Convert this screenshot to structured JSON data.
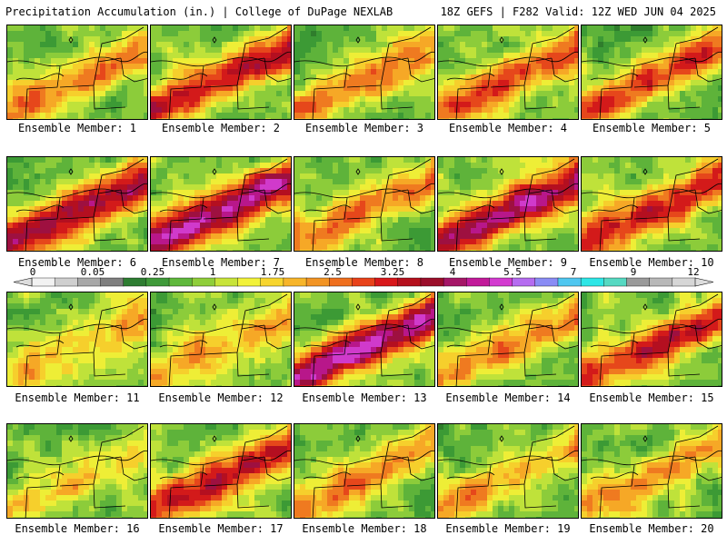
{
  "header": {
    "left": "Precipitation Accumulation (in.) | College of DuPage NEXLAB",
    "right": "18Z GEFS | F282 Valid: 12Z WED JUN 04 2025"
  },
  "colorbar": {
    "ticks": [
      "0",
      "0.05",
      "0.25",
      "1",
      "1.75",
      "2.5",
      "3.25",
      "4",
      "5.5",
      "7",
      "9",
      "12"
    ],
    "colors": [
      "#f2f2f2",
      "#cfcfcf",
      "#a8a8a8",
      "#7f7f7f",
      "#2e7d32",
      "#3f9a3a",
      "#5fb83c",
      "#8fce3a",
      "#c8e43a",
      "#f2f23a",
      "#f7d52e",
      "#f7b52a",
      "#f29424",
      "#ef6f1e",
      "#e8421a",
      "#d8171a",
      "#b5101d",
      "#9b0e2a",
      "#a51667",
      "#c21a9a",
      "#d33bd0",
      "#b56cf0",
      "#8a8cf5",
      "#4fc7f0",
      "#2ee6e6",
      "#56d9c2",
      "#9a9a9a",
      "#b8b8b8",
      "#d6d6d6"
    ]
  },
  "members": [
    {
      "label": "Ensemble Member: 1",
      "intensity": 1.8
    },
    {
      "label": "Ensemble Member: 2",
      "intensity": 2.6
    },
    {
      "label": "Ensemble Member: 3",
      "intensity": 1.6
    },
    {
      "label": "Ensemble Member: 4",
      "intensity": 2.0
    },
    {
      "label": "Ensemble Member: 5",
      "intensity": 2.2
    },
    {
      "label": "Ensemble Member: 6",
      "intensity": 3.0
    },
    {
      "label": "Ensemble Member: 7",
      "intensity": 3.3
    },
    {
      "label": "Ensemble Member: 8",
      "intensity": 1.7
    },
    {
      "label": "Ensemble Member: 9",
      "intensity": 3.2
    },
    {
      "label": "Ensemble Member: 10",
      "intensity": 2.4
    },
    {
      "label": "Ensemble Member: 11",
      "intensity": 1.3
    },
    {
      "label": "Ensemble Member: 12",
      "intensity": 1.4
    },
    {
      "label": "Ensemble Member: 13",
      "intensity": 3.5
    },
    {
      "label": "Ensemble Member: 14",
      "intensity": 1.6
    },
    {
      "label": "Ensemble Member: 15",
      "intensity": 2.4
    },
    {
      "label": "Ensemble Member: 16",
      "intensity": 1.2
    },
    {
      "label": "Ensemble Member: 17",
      "intensity": 2.6
    },
    {
      "label": "Ensemble Member: 18",
      "intensity": 1.7
    },
    {
      "label": "Ensemble Member: 19",
      "intensity": 1.5
    },
    {
      "label": "Ensemble Member: 20",
      "intensity": 1.3
    }
  ]
}
